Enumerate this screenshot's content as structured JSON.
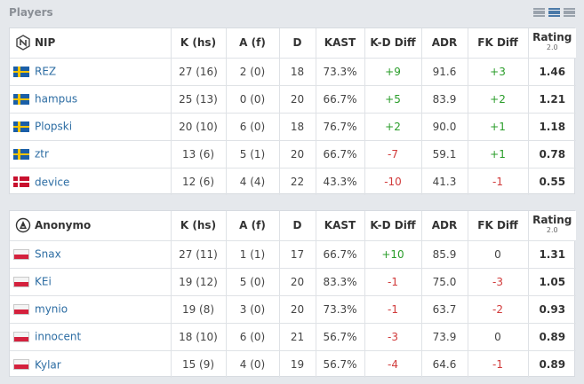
{
  "header": {
    "title": "Players",
    "view_icons": [
      "compact-view-icon",
      "list-view-icon",
      "detailed-view-icon"
    ]
  },
  "colors": {
    "positive": "#2a9d2a",
    "negative": "#d13b3b",
    "link": "#2d6da3"
  },
  "columns": [
    "K (hs)",
    "A (f)",
    "D",
    "KAST",
    "K-D Diff",
    "ADR",
    "FK Diff",
    "Rating"
  ],
  "rating_version": "2.0",
  "teams": [
    {
      "name": "NIP",
      "logo": "nip-logo-icon",
      "players": [
        {
          "name": "REZ",
          "flag": "se",
          "k": "27 (16)",
          "a": "2 (0)",
          "d": "18",
          "kast": "73.3%",
          "kd": "+9",
          "kd_sign": "pos",
          "adr": "91.6",
          "fk": "+3",
          "fk_sign": "pos",
          "rating": "1.46"
        },
        {
          "name": "hampus",
          "flag": "se",
          "k": "25 (13)",
          "a": "0 (0)",
          "d": "20",
          "kast": "66.7%",
          "kd": "+5",
          "kd_sign": "pos",
          "adr": "83.9",
          "fk": "+2",
          "fk_sign": "pos",
          "rating": "1.21"
        },
        {
          "name": "Plopski",
          "flag": "se",
          "k": "20 (10)",
          "a": "6 (0)",
          "d": "18",
          "kast": "76.7%",
          "kd": "+2",
          "kd_sign": "pos",
          "adr": "90.0",
          "fk": "+1",
          "fk_sign": "pos",
          "rating": "1.18"
        },
        {
          "name": "ztr",
          "flag": "se",
          "k": "13 (6)",
          "a": "5 (1)",
          "d": "20",
          "kast": "66.7%",
          "kd": "-7",
          "kd_sign": "neg",
          "adr": "59.1",
          "fk": "+1",
          "fk_sign": "pos",
          "rating": "0.78"
        },
        {
          "name": "device",
          "flag": "dk",
          "k": "12 (6)",
          "a": "4 (4)",
          "d": "22",
          "kast": "43.3%",
          "kd": "-10",
          "kd_sign": "neg",
          "adr": "41.3",
          "fk": "-1",
          "fk_sign": "neg",
          "rating": "0.55"
        }
      ]
    },
    {
      "name": "Anonymo",
      "logo": "anonymo-logo-icon",
      "players": [
        {
          "name": "Snax",
          "flag": "pl",
          "k": "27 (11)",
          "a": "1 (1)",
          "d": "17",
          "kast": "66.7%",
          "kd": "+10",
          "kd_sign": "pos",
          "adr": "85.9",
          "fk": "0",
          "fk_sign": "neu",
          "rating": "1.31"
        },
        {
          "name": "KEi",
          "flag": "pl",
          "k": "19 (12)",
          "a": "5 (0)",
          "d": "20",
          "kast": "83.3%",
          "kd": "-1",
          "kd_sign": "neg",
          "adr": "75.0",
          "fk": "-3",
          "fk_sign": "neg",
          "rating": "1.05"
        },
        {
          "name": "mynio",
          "flag": "pl",
          "k": "19 (8)",
          "a": "3 (0)",
          "d": "20",
          "kast": "73.3%",
          "kd": "-1",
          "kd_sign": "neg",
          "adr": "63.7",
          "fk": "-2",
          "fk_sign": "neg",
          "rating": "0.93"
        },
        {
          "name": "innocent",
          "flag": "pl",
          "k": "18 (10)",
          "a": "6 (0)",
          "d": "21",
          "kast": "56.7%",
          "kd": "-3",
          "kd_sign": "neg",
          "adr": "73.9",
          "fk": "0",
          "fk_sign": "neu",
          "rating": "0.89"
        },
        {
          "name": "Kylar",
          "flag": "pl",
          "k": "15 (9)",
          "a": "4 (0)",
          "d": "19",
          "kast": "56.7%",
          "kd": "-4",
          "kd_sign": "neg",
          "adr": "64.6",
          "fk": "-1",
          "fk_sign": "neg",
          "rating": "0.89"
        }
      ]
    }
  ]
}
